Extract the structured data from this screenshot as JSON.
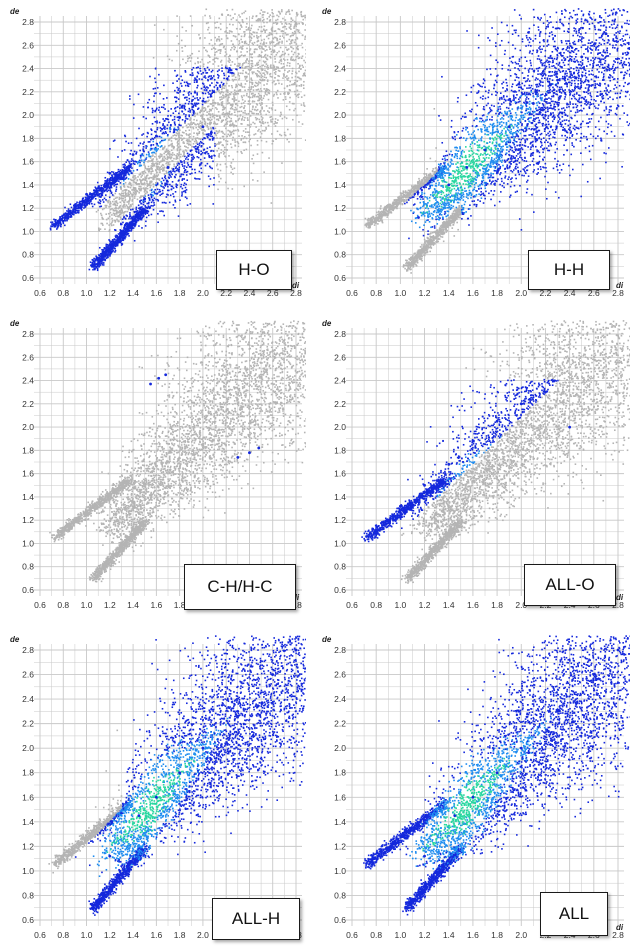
{
  "chart_data": [
    {
      "type": "scatter",
      "title": "H-O",
      "xlabel": "di",
      "ylabel": "de",
      "xlim": [
        0.6,
        2.8
      ],
      "ylim": [
        0.6,
        2.8
      ],
      "x_ticks": [
        "0.6",
        "0.8",
        "1.0",
        "1.2",
        "1.4",
        "1.6",
        "1.8",
        "2.0",
        "2.2",
        "2.4",
        "2.6",
        "2.8"
      ],
      "y_ticks": [
        "2.8",
        "2.6",
        "2.4",
        "2.2",
        "2.0",
        "1.8",
        "1.6",
        "1.4",
        "1.2",
        "1.0",
        "0.8",
        "0.6"
      ],
      "highlighted": true,
      "shape": "ho",
      "series": [
        {
          "points": [
            [
              0.72,
              1.06
            ],
            [
              1.0,
              1.32
            ],
            [
              1.2,
              1.5
            ],
            [
              1.4,
              1.66
            ],
            [
              1.6,
              1.82
            ],
            [
              1.8,
              1.98
            ],
            [
              2.0,
              2.12
            ],
            [
              1.05,
              0.7
            ],
            [
              1.3,
              1.0
            ],
            [
              1.5,
              1.28
            ],
            [
              1.7,
              1.55
            ],
            [
              2.0,
              1.9
            ]
          ]
        }
      ]
    },
    {
      "type": "scatter",
      "title": "H-H",
      "xlabel": "di",
      "ylabel": "de",
      "xlim": [
        0.6,
        2.8
      ],
      "ylim": [
        0.6,
        2.8
      ],
      "x_ticks": [
        "0.6",
        "0.8",
        "1.0",
        "1.2",
        "1.4",
        "1.6",
        "1.8",
        "2.0",
        "2.2",
        "2.4",
        "2.6",
        "2.8"
      ],
      "y_ticks": [
        "2.8",
        "2.6",
        "2.4",
        "2.2",
        "2.0",
        "1.8",
        "1.6",
        "1.4",
        "1.2",
        "1.0",
        "0.8",
        "0.6"
      ],
      "highlighted": true,
      "shape": "hh",
      "series": [
        {
          "points": [
            [
              1.15,
              1.12
            ],
            [
              1.4,
              1.4
            ],
            [
              1.55,
              1.55
            ],
            [
              1.7,
              1.7
            ],
            [
              1.9,
              1.9
            ],
            [
              2.1,
              2.1
            ],
            [
              2.3,
              2.3
            ],
            [
              2.5,
              2.5
            ],
            [
              2.7,
              2.7
            ]
          ]
        }
      ]
    },
    {
      "type": "scatter",
      "title": "C-H/H-C",
      "xlabel": "di",
      "ylabel": "de",
      "xlim": [
        0.6,
        2.8
      ],
      "ylim": [
        0.6,
        2.8
      ],
      "x_ticks": [
        "0.6",
        "0.8",
        "1.0",
        "1.2",
        "1.4",
        "1.6",
        "1.8",
        "2.0",
        "2.2",
        "2.4",
        "2.6",
        "2.8"
      ],
      "y_ticks": [
        "2.8",
        "2.6",
        "2.4",
        "2.2",
        "2.0",
        "1.8",
        "1.6",
        "1.4",
        "1.2",
        "1.0",
        "0.8",
        "0.6"
      ],
      "highlighted": true,
      "shape": "ch",
      "series": [
        {
          "points": [
            [
              1.55,
              2.37
            ],
            [
              1.62,
              2.42
            ],
            [
              1.68,
              2.45
            ],
            [
              2.3,
              1.74
            ],
            [
              2.4,
              1.78
            ],
            [
              2.48,
              1.82
            ]
          ]
        }
      ]
    },
    {
      "type": "scatter",
      "title": "ALL-O",
      "xlabel": "di",
      "ylabel": "de",
      "xlim": [
        0.6,
        2.8
      ],
      "ylim": [
        0.6,
        2.8
      ],
      "x_ticks": [
        "0.6",
        "0.8",
        "1.0",
        "1.2",
        "1.4",
        "1.6",
        "1.8",
        "2.0",
        "2.2",
        "2.4",
        "2.6",
        "2.8"
      ],
      "y_ticks": [
        "2.8",
        "2.6",
        "2.4",
        "2.2",
        "2.0",
        "1.8",
        "1.6",
        "1.4",
        "1.2",
        "1.0",
        "0.8",
        "0.6"
      ],
      "highlighted": true,
      "shape": "allo",
      "series": [
        {
          "points": [
            [
              0.72,
              1.06
            ],
            [
              1.0,
              1.32
            ],
            [
              1.2,
              1.5
            ],
            [
              1.4,
              1.68
            ],
            [
              1.6,
              1.88
            ],
            [
              1.8,
              2.05
            ],
            [
              2.0,
              2.2
            ],
            [
              2.2,
              2.3
            ],
            [
              2.4,
              2.0
            ]
          ]
        }
      ]
    },
    {
      "type": "scatter",
      "title": "ALL-H",
      "xlabel": "di",
      "ylabel": "de",
      "xlim": [
        0.6,
        2.8
      ],
      "ylim": [
        0.6,
        2.8
      ],
      "x_ticks": [
        "0.6",
        "0.8",
        "1.0",
        "1.2",
        "1.4",
        "1.6",
        "1.8",
        "2.0",
        "2.2",
        "2.4",
        "2.6",
        "2.8"
      ],
      "y_ticks": [
        "2.8",
        "2.6",
        "2.4",
        "2.2",
        "2.0",
        "1.8",
        "1.6",
        "1.4",
        "1.2",
        "1.0",
        "0.8",
        "0.6"
      ],
      "highlighted": true,
      "shape": "allh",
      "series": [
        {
          "points": [
            [
              1.05,
              0.7
            ],
            [
              1.2,
              1.12
            ],
            [
              1.45,
              1.45
            ],
            [
              1.6,
              1.6
            ],
            [
              1.8,
              1.8
            ],
            [
              2.0,
              2.0
            ],
            [
              2.3,
              2.3
            ],
            [
              2.6,
              2.6
            ],
            [
              2.8,
              2.8
            ]
          ]
        }
      ]
    },
    {
      "type": "scatter",
      "title": "ALL",
      "xlabel": "di",
      "ylabel": "de",
      "xlim": [
        0.6,
        2.8
      ],
      "ylim": [
        0.6,
        2.8
      ],
      "x_ticks": [
        "0.6",
        "0.8",
        "1.0",
        "1.2",
        "1.4",
        "1.6",
        "1.8",
        "2.0",
        "2.2",
        "2.4",
        "2.6",
        "2.8"
      ],
      "y_ticks": [
        "2.8",
        "2.6",
        "2.4",
        "2.2",
        "2.0",
        "1.8",
        "1.6",
        "1.4",
        "1.2",
        "1.0",
        "0.8",
        "0.6"
      ],
      "highlighted": true,
      "shape": "all",
      "series": [
        {
          "points": [
            [
              0.72,
              1.06
            ],
            [
              1.05,
              0.7
            ],
            [
              1.2,
              1.12
            ],
            [
              1.45,
              1.45
            ],
            [
              1.6,
              1.6
            ],
            [
              1.8,
              1.8
            ],
            [
              2.0,
              2.0
            ],
            [
              2.3,
              2.3
            ],
            [
              2.6,
              2.6
            ],
            [
              2.8,
              2.8
            ]
          ]
        }
      ]
    }
  ],
  "colors": {
    "grid": "#c8c8c8",
    "background_points": "#b4b4b4",
    "high_density": "#28d7a0",
    "mid_density": "#1e8cf0",
    "low_density": "#1428dc"
  }
}
